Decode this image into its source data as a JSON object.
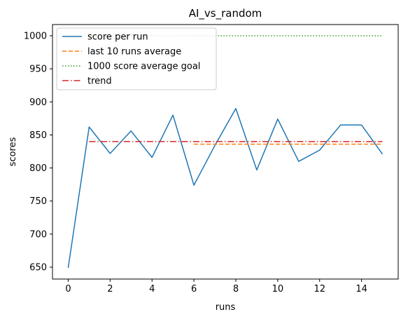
{
  "chart_data": {
    "type": "line",
    "title": "AI_vs_random",
    "xlabel": "runs",
    "ylabel": "scores",
    "xlim": [
      -0.75,
      15.75
    ],
    "ylim": [
      632,
      1017
    ],
    "xticks": [
      0,
      2,
      4,
      6,
      8,
      10,
      12,
      14
    ],
    "yticks": [
      650,
      700,
      750,
      800,
      850,
      900,
      950,
      1000
    ],
    "grid": false,
    "legend_position": "top-left",
    "series": [
      {
        "name": "score per run",
        "style": "solid",
        "color": "#1f77b4",
        "x": [
          0,
          1,
          2,
          3,
          4,
          5,
          6,
          7,
          8,
          9,
          10,
          11,
          12,
          13,
          14,
          15
        ],
        "y": [
          649,
          862,
          822,
          856,
          816,
          880,
          774,
          834,
          890,
          797,
          874,
          810,
          827,
          865,
          865,
          821
        ]
      },
      {
        "name": "last 10 runs average",
        "style": "dashed",
        "color": "#ff7f0e",
        "x": [
          6,
          15
        ],
        "y": [
          836,
          836
        ]
      },
      {
        "name": "1000 score average goal",
        "style": "dotted",
        "color": "#2ca02c",
        "x": [
          1,
          15
        ],
        "y": [
          1000,
          1000
        ]
      },
      {
        "name": "trend",
        "style": "dashdot",
        "color": "#d62728",
        "x": [
          1,
          15
        ],
        "y": [
          840,
          840
        ]
      }
    ]
  }
}
